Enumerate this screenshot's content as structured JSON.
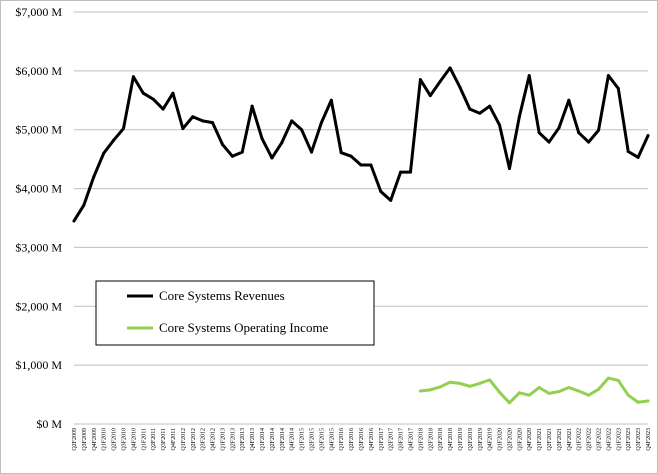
{
  "chart_data": {
    "type": "line",
    "title": "",
    "xlabel": "",
    "ylabel": "",
    "ylim": [
      0,
      7000
    ],
    "y_ticks": [
      0,
      1000,
      2000,
      3000,
      4000,
      5000,
      6000,
      7000
    ],
    "y_tick_labels": [
      "$0 M",
      "$1,000 M",
      "$2,000 M",
      "$3,000 M",
      "$4,000 M",
      "$5,000 M",
      "$6,000 M",
      "$7,000 M"
    ],
    "grid": true,
    "legend_position": "lower-left",
    "categories": [
      "Q2F2009",
      "Q3F2009",
      "Q4F2009",
      "Q1F2010",
      "Q2F2010",
      "Q3F2010",
      "Q4F2010",
      "Q1F2011",
      "Q2F2011",
      "Q3F2011",
      "Q4F2011",
      "Q1F2012",
      "Q2F2012",
      "Q3F2012",
      "Q4F2012",
      "Q1F2013",
      "Q2F2013",
      "Q3F2013",
      "Q4F2013",
      "Q1F2014",
      "Q2F2014",
      "Q3F2014",
      "Q4F2014",
      "Q1F2015",
      "Q2F2015",
      "Q3F2015",
      "Q4F2015",
      "Q1F2016",
      "Q2F2016",
      "Q3F2016",
      "Q4F2016",
      "Q1F2017",
      "Q2F2017",
      "Q3F2017",
      "Q4F2017",
      "Q1F2018",
      "Q2F2018",
      "Q3F2018",
      "Q4F2018",
      "Q1F2019",
      "Q2F2019",
      "Q3F2019",
      "Q4F2019",
      "Q1F2020",
      "Q2F2020",
      "Q3F2020",
      "Q4F2020",
      "Q1F2021",
      "Q2F2021",
      "Q3F2021",
      "Q4F2021",
      "Q1F2022",
      "Q2F2022",
      "Q3F2022",
      "Q4F2022",
      "Q1F2023",
      "Q2F2023",
      "Q3F2023",
      "Q4F2023"
    ],
    "series": [
      {
        "name": "Core Systems Revenues",
        "color": "#000000",
        "values": [
          3450,
          3720,
          4200,
          4600,
          4820,
          5020,
          5900,
          5620,
          5520,
          5350,
          5620,
          5020,
          5220,
          5150,
          5120,
          4750,
          4550,
          4620,
          5400,
          4850,
          4520,
          4780,
          5150,
          5000,
          4620,
          5120,
          5500,
          4610,
          4550,
          4400,
          4400,
          3950,
          3800,
          4280,
          4280,
          5850,
          5580,
          5820,
          6050,
          5720,
          5350,
          5280,
          5400,
          5080,
          4340,
          5220,
          5920,
          4950,
          4790,
          5030,
          5500,
          4950,
          4790,
          4990,
          5920,
          5700,
          4630,
          4530,
          4900
        ]
      },
      {
        "name": "Core Systems Operating Income",
        "color": "#92d050",
        "values": [
          null,
          null,
          null,
          null,
          null,
          null,
          null,
          null,
          null,
          null,
          null,
          null,
          null,
          null,
          null,
          null,
          null,
          null,
          null,
          null,
          null,
          null,
          null,
          null,
          null,
          null,
          null,
          null,
          null,
          null,
          null,
          null,
          null,
          null,
          null,
          560,
          580,
          630,
          710,
          690,
          640,
          690,
          750,
          540,
          360,
          530,
          490,
          620,
          520,
          550,
          620,
          560,
          490,
          590,
          780,
          740,
          490,
          370,
          390
        ]
      }
    ]
  }
}
